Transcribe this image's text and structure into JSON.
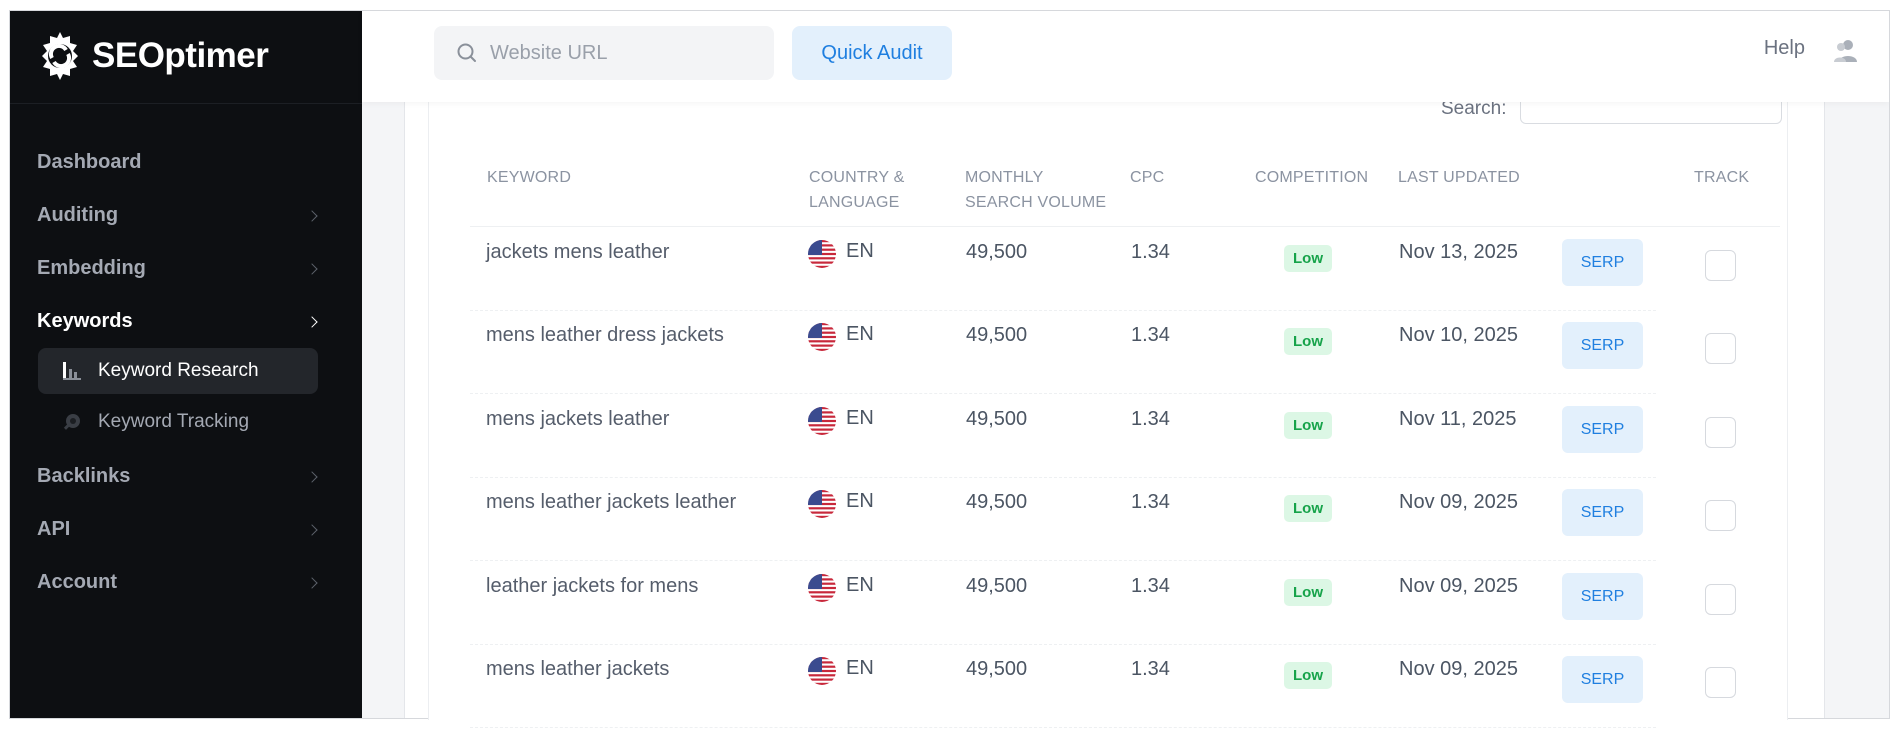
{
  "brand": {
    "name": "SEOptimer"
  },
  "sidebar": {
    "items": [
      {
        "label": "Dashboard",
        "has_chevron": false
      },
      {
        "label": "Auditing",
        "has_chevron": true
      },
      {
        "label": "Embedding",
        "has_chevron": true
      },
      {
        "label": "Keywords",
        "has_chevron": true,
        "active": true
      },
      {
        "label": "Backlinks",
        "has_chevron": true
      },
      {
        "label": "API",
        "has_chevron": true
      },
      {
        "label": "Account",
        "has_chevron": true
      }
    ],
    "subitems": [
      {
        "label": "Keyword Research",
        "icon": "bar-chart-icon",
        "active": true
      },
      {
        "label": "Keyword Tracking",
        "icon": "magnifier-icon",
        "active": false
      }
    ]
  },
  "topbar": {
    "search_placeholder": "Website URL",
    "quick_audit_label": "Quick Audit",
    "help_label": "Help",
    "user_icon": "users-icon"
  },
  "table": {
    "search_label": "Search:",
    "search_value": "",
    "headers": {
      "keyword": "KEYWORD",
      "country_line1": "COUNTRY &",
      "country_line2": "LANGUAGE",
      "volume_line1": "MONTHLY",
      "volume_line2": "SEARCH VOLUME",
      "cpc": "CPC",
      "competition": "COMPETITION",
      "last_updated": "LAST UPDATED",
      "track": "TRACK"
    },
    "rows": [
      {
        "keyword": "jackets mens leather",
        "language": "EN",
        "volume": "49,500",
        "cpc": "1.34",
        "competition": "Low",
        "updated": "Nov 13, 2025",
        "serp": "SERP"
      },
      {
        "keyword": "mens leather dress jackets",
        "language": "EN",
        "volume": "49,500",
        "cpc": "1.34",
        "competition": "Low",
        "updated": "Nov 10, 2025",
        "serp": "SERP"
      },
      {
        "keyword": "mens jackets leather",
        "language": "EN",
        "volume": "49,500",
        "cpc": "1.34",
        "competition": "Low",
        "updated": "Nov 11, 2025",
        "serp": "SERP"
      },
      {
        "keyword": "mens leather jackets leather",
        "language": "EN",
        "volume": "49,500",
        "cpc": "1.34",
        "competition": "Low",
        "updated": "Nov 09, 2025",
        "serp": "SERP"
      },
      {
        "keyword": "leather jackets for mens",
        "language": "EN",
        "volume": "49,500",
        "cpc": "1.34",
        "competition": "Low",
        "updated": "Nov 09, 2025",
        "serp": "SERP"
      },
      {
        "keyword": "mens leather jackets",
        "language": "EN",
        "volume": "49,500",
        "cpc": "1.34",
        "competition": "Low",
        "updated": "Nov 09, 2025",
        "serp": "SERP"
      }
    ]
  },
  "colors": {
    "sidebar_bg": "#0d0f12",
    "accent": "#1f7fe0",
    "accent_bg": "#e3f0fc",
    "badge_low_bg": "#dcf7e5",
    "badge_low_text": "#16a34a"
  }
}
